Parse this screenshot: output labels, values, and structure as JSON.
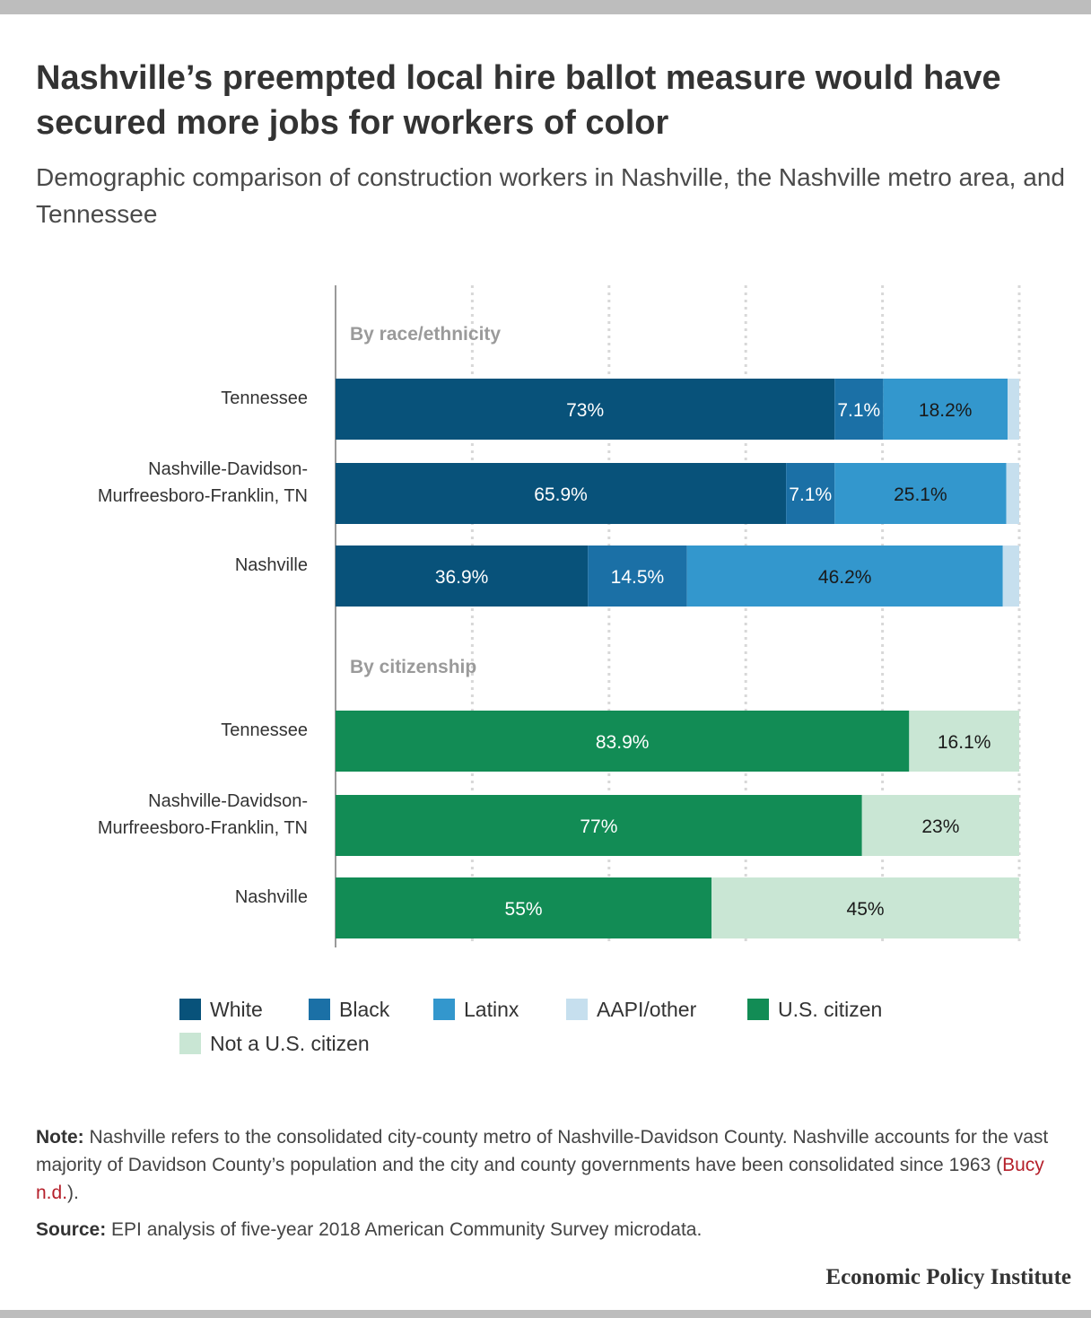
{
  "title": "Nashville’s preempted local hire ballot measure would have secured more jobs for workers of color",
  "subtitle": "Demographic comparison of construction workers in Nashville, the Nashville metro area, and Tennessee",
  "chart_data": {
    "type": "bar",
    "orientation": "horizontal",
    "stacked": true,
    "xlim": [
      0,
      100
    ],
    "grid": true,
    "legend_position": "bottom",
    "groups": [
      {
        "label": "By race/ethnicity",
        "categories": [
          {
            "label": "Tennessee",
            "lines": [
              "Tennessee"
            ]
          },
          {
            "label": "Nashville-Davidson-Murfreesboro-Franklin, TN",
            "lines": [
              "Nashville-Davidson-",
              "Murfreesboro-Franklin, TN"
            ]
          },
          {
            "label": "Nashville",
            "lines": [
              "Nashville"
            ]
          }
        ],
        "series": [
          {
            "name": "White",
            "color": "#08527a",
            "label_color": "#ffffff",
            "values": [
              73,
              65.9,
              36.9
            ],
            "labels": [
              "73%",
              "65.9%",
              "36.9%"
            ]
          },
          {
            "name": "Black",
            "color": "#1b70a6",
            "label_color": "#ffffff",
            "values": [
              7.1,
              7.1,
              14.5
            ],
            "labels": [
              "7.1%",
              "7.1%",
              "14.5%"
            ]
          },
          {
            "name": "Latinx",
            "color": "#3397cd",
            "label_color": "#1a1a1a",
            "values": [
              18.2,
              25.1,
              46.2
            ],
            "labels": [
              "18.2%",
              "25.1%",
              "46.2%"
            ]
          },
          {
            "name": "AAPI/other",
            "color": "#c6dfee",
            "label_color": "#1a1a1a",
            "values": [
              1.7,
              1.9,
              2.4
            ],
            "labels": [
              "",
              "",
              ""
            ]
          }
        ]
      },
      {
        "label": "By citizenship",
        "categories": [
          {
            "label": "Tennessee",
            "lines": [
              "Tennessee"
            ]
          },
          {
            "label": "Nashville-Davidson-Murfreesboro-Franklin, TN",
            "lines": [
              "Nashville-Davidson-",
              "Murfreesboro-Franklin, TN"
            ]
          },
          {
            "label": "Nashville",
            "lines": [
              "Nashville"
            ]
          }
        ],
        "series": [
          {
            "name": "U.S. citizen",
            "color": "#128c55",
            "label_color": "#ffffff",
            "values": [
              83.9,
              77,
              55
            ],
            "labels": [
              "83.9%",
              "77%",
              "55%"
            ]
          },
          {
            "name": "Not a U.S. citizen",
            "color": "#c9e6d4",
            "label_color": "#1a1a1a",
            "values": [
              16.1,
              23,
              45
            ],
            "labels": [
              "16.1%",
              "23%",
              "45%"
            ]
          }
        ]
      }
    ]
  },
  "legend": [
    {
      "name": "White",
      "color": "#08527a"
    },
    {
      "name": "Black",
      "color": "#1b70a6"
    },
    {
      "name": "Latinx",
      "color": "#3397cd"
    },
    {
      "name": "AAPI/other",
      "color": "#c6dfee"
    },
    {
      "name": "U.S. citizen",
      "color": "#128c55"
    },
    {
      "name": "Not a U.S. citizen",
      "color": "#c9e6d4"
    }
  ],
  "note": {
    "label": "Note:",
    "text_before": " Nashville refers to the consolidated city-county metro of Nashville-Davidson County. Nashville accounts for the vast majority of Davidson County’s population and the city and county governments have been consolidated since 1963 (",
    "link_text": "Bucy n.d.",
    "text_after": ")."
  },
  "source": {
    "label": "Source:",
    "text": " EPI analysis of five-year 2018 American Community Survey microdata."
  },
  "brand": "Economic Policy Institute"
}
